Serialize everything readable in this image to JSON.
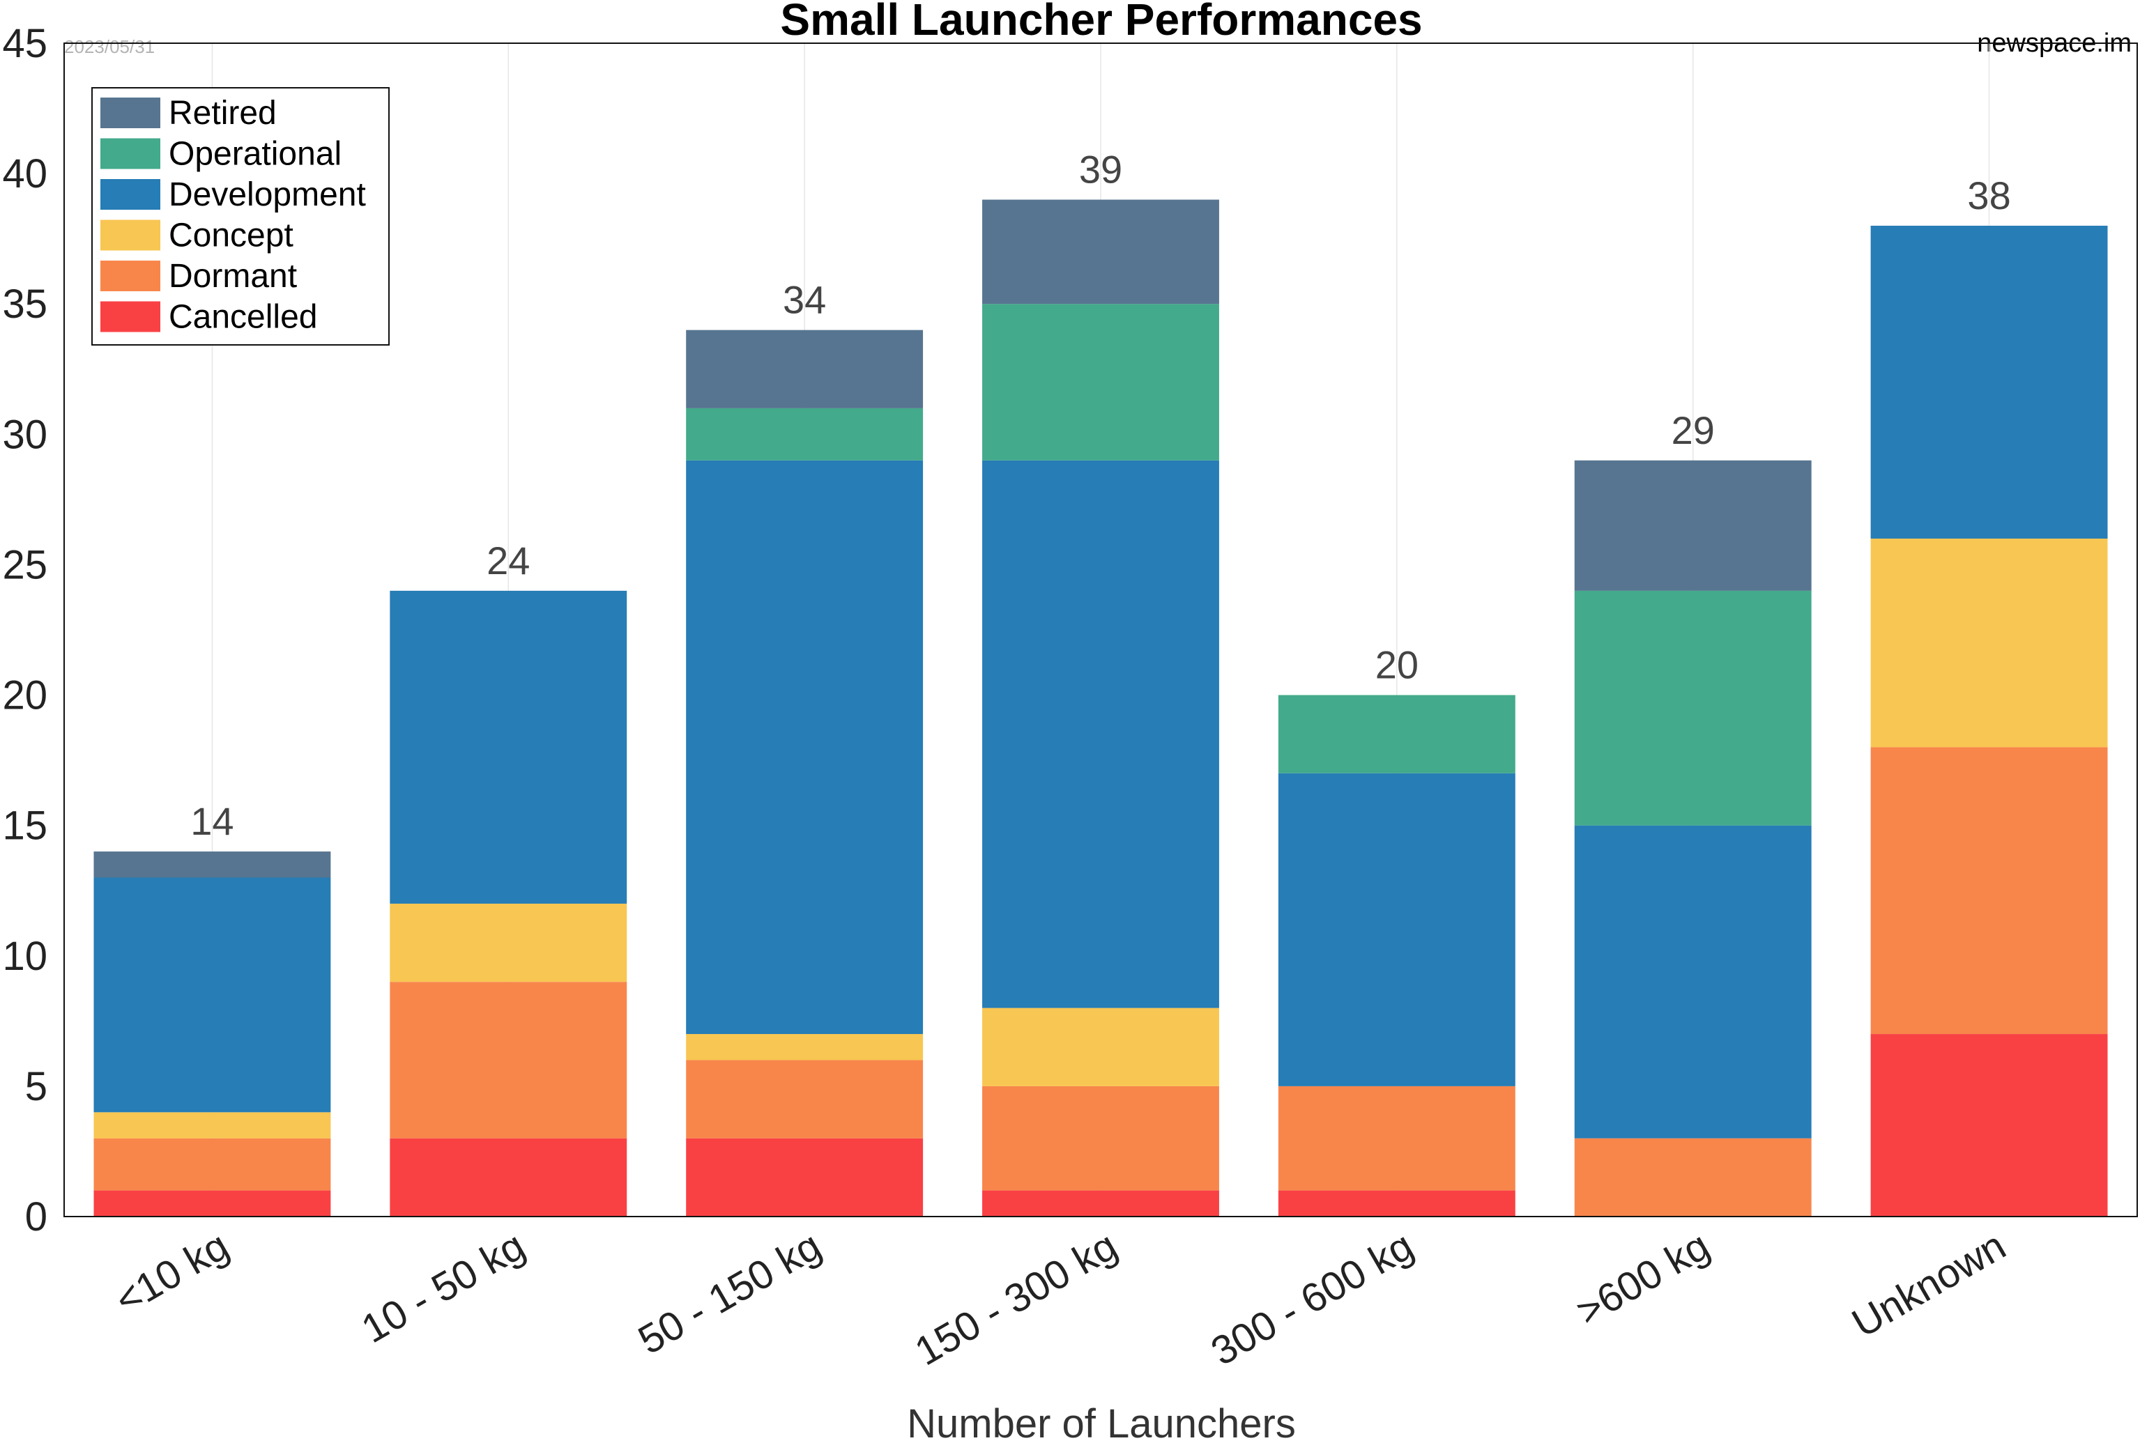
{
  "chart_data": {
    "type": "bar",
    "stacked": true,
    "title": "Small Launcher Performances",
    "date": "2023/05/31",
    "source": "newspace.im",
    "xlabel": "Number of Launchers",
    "ylabel": "",
    "ylim": [
      0,
      45
    ],
    "yticks": [
      0,
      5,
      10,
      15,
      20,
      25,
      30,
      35,
      40,
      45
    ],
    "grid": "vertical",
    "legend_position": "top-left",
    "categories": [
      "<10 kg",
      "10 - 50 kg",
      "50 - 150 kg",
      "150 - 300 kg",
      "300 - 600 kg",
      ">600 kg",
      "Unknown"
    ],
    "series": [
      {
        "name": "Cancelled",
        "color": "#f94144",
        "values": [
          1,
          3,
          3,
          1,
          1,
          0,
          7
        ]
      },
      {
        "name": "Dormant",
        "color": "#f8864b",
        "values": [
          2,
          6,
          3,
          4,
          4,
          3,
          11
        ]
      },
      {
        "name": "Concept",
        "color": "#f8c652",
        "values": [
          1,
          3,
          1,
          3,
          0,
          0,
          8
        ]
      },
      {
        "name": "Development",
        "color": "#277db5",
        "values": [
          9,
          12,
          22,
          21,
          12,
          12,
          12
        ]
      },
      {
        "name": "Operational",
        "color": "#43aa8b",
        "values": [
          0,
          0,
          2,
          6,
          3,
          9,
          0
        ]
      },
      {
        "name": "Retired",
        "color": "#577590",
        "values": [
          1,
          0,
          3,
          4,
          0,
          5,
          0
        ]
      }
    ],
    "totals": [
      14,
      24,
      34,
      39,
      20,
      29,
      38
    ],
    "legend_order": [
      "Retired",
      "Operational",
      "Development",
      "Concept",
      "Dormant",
      "Cancelled"
    ]
  }
}
